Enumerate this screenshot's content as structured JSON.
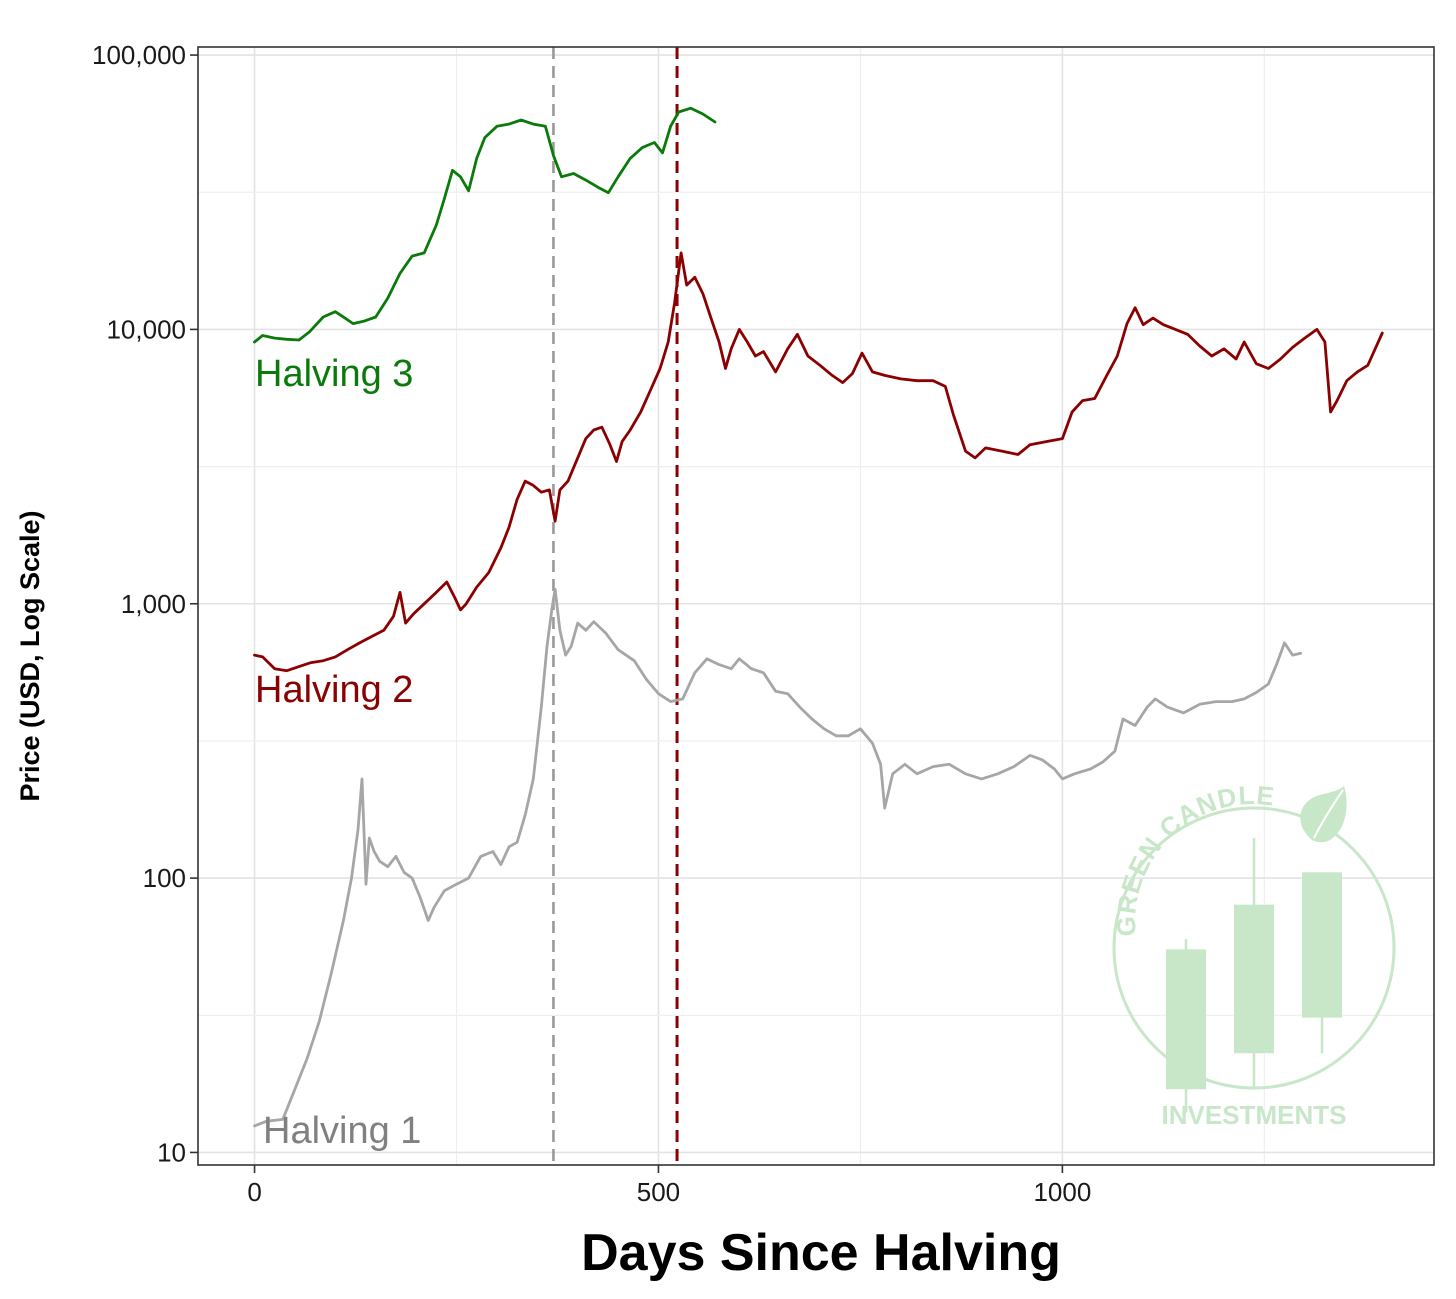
{
  "chart_data": {
    "type": "line",
    "title": "",
    "xlabel": "Days Since Halving",
    "ylabel": "Price (USD, Log Scale)",
    "y_scale": "log",
    "xlim": [
      -70,
      1460
    ],
    "ylim": [
      9,
      107000
    ],
    "x_ticks": [
      0,
      500,
      1000
    ],
    "x_tick_labels": [
      "0",
      "500",
      "1000"
    ],
    "y_ticks": [
      10,
      100,
      1000,
      10000,
      100000
    ],
    "y_tick_labels": [
      "10",
      "100",
      "1,000",
      "10,000",
      "100,000"
    ],
    "grid": true,
    "legend": "none",
    "colors": {
      "halving1": "#a6a6a6",
      "halving2": "#8b0000",
      "halving3": "#0a7a0a",
      "vline1": "#999999",
      "vline2": "#8b0000",
      "watermark": "#c8e6c8"
    },
    "vlines": [
      {
        "x": 370,
        "color": "#999999",
        "style": "dashed"
      },
      {
        "x": 523,
        "color": "#8b0000",
        "style": "dashed"
      }
    ],
    "series": [
      {
        "name": "Halving 1",
        "color": "#a6a6a6",
        "points": [
          [
            0,
            12.5
          ],
          [
            15,
            13
          ],
          [
            35,
            13.2
          ],
          [
            50,
            17
          ],
          [
            65,
            22
          ],
          [
            80,
            30
          ],
          [
            95,
            45
          ],
          [
            110,
            70
          ],
          [
            120,
            100
          ],
          [
            128,
            150
          ],
          [
            133,
            230
          ],
          [
            138,
            95
          ],
          [
            142,
            140
          ],
          [
            148,
            125
          ],
          [
            155,
            115
          ],
          [
            165,
            110
          ],
          [
            175,
            120
          ],
          [
            185,
            105
          ],
          [
            195,
            100
          ],
          [
            205,
            85
          ],
          [
            215,
            70
          ],
          [
            222,
            78
          ],
          [
            235,
            90
          ],
          [
            250,
            95
          ],
          [
            265,
            100
          ],
          [
            280,
            120
          ],
          [
            295,
            125
          ],
          [
            305,
            112
          ],
          [
            315,
            130
          ],
          [
            325,
            135
          ],
          [
            335,
            170
          ],
          [
            345,
            230
          ],
          [
            355,
            420
          ],
          [
            362,
            700
          ],
          [
            368,
            950
          ],
          [
            372,
            1130
          ],
          [
            378,
            800
          ],
          [
            385,
            650
          ],
          [
            392,
            700
          ],
          [
            400,
            850
          ],
          [
            410,
            800
          ],
          [
            420,
            860
          ],
          [
            435,
            780
          ],
          [
            450,
            680
          ],
          [
            470,
            620
          ],
          [
            485,
            530
          ],
          [
            500,
            470
          ],
          [
            515,
            440
          ],
          [
            530,
            450
          ],
          [
            545,
            560
          ],
          [
            560,
            630
          ],
          [
            575,
            600
          ],
          [
            590,
            580
          ],
          [
            600,
            630
          ],
          [
            615,
            580
          ],
          [
            630,
            560
          ],
          [
            645,
            480
          ],
          [
            660,
            470
          ],
          [
            675,
            420
          ],
          [
            690,
            380
          ],
          [
            705,
            350
          ],
          [
            720,
            330
          ],
          [
            735,
            330
          ],
          [
            750,
            350
          ],
          [
            765,
            310
          ],
          [
            775,
            260
          ],
          [
            780,
            180
          ],
          [
            790,
            240
          ],
          [
            805,
            260
          ],
          [
            820,
            240
          ],
          [
            840,
            255
          ],
          [
            860,
            260
          ],
          [
            880,
            240
          ],
          [
            900,
            230
          ],
          [
            920,
            240
          ],
          [
            940,
            255
          ],
          [
            960,
            280
          ],
          [
            975,
            270
          ],
          [
            990,
            250
          ],
          [
            1000,
            230
          ],
          [
            1015,
            240
          ],
          [
            1035,
            250
          ],
          [
            1050,
            265
          ],
          [
            1065,
            290
          ],
          [
            1075,
            380
          ],
          [
            1090,
            360
          ],
          [
            1105,
            420
          ],
          [
            1115,
            450
          ],
          [
            1130,
            420
          ],
          [
            1150,
            400
          ],
          [
            1170,
            430
          ],
          [
            1190,
            440
          ],
          [
            1210,
            440
          ],
          [
            1225,
            450
          ],
          [
            1240,
            475
          ],
          [
            1255,
            510
          ],
          [
            1265,
            600
          ],
          [
            1275,
            720
          ],
          [
            1285,
            650
          ],
          [
            1295,
            660
          ]
        ]
      },
      {
        "name": "Halving 2",
        "color": "#8b0000",
        "points": [
          [
            0,
            650
          ],
          [
            10,
            640
          ],
          [
            25,
            580
          ],
          [
            40,
            570
          ],
          [
            55,
            590
          ],
          [
            70,
            610
          ],
          [
            85,
            620
          ],
          [
            100,
            640
          ],
          [
            115,
            680
          ],
          [
            130,
            720
          ],
          [
            145,
            760
          ],
          [
            160,
            800
          ],
          [
            172,
            900
          ],
          [
            180,
            1100
          ],
          [
            187,
            850
          ],
          [
            197,
            920
          ],
          [
            210,
            1000
          ],
          [
            225,
            1100
          ],
          [
            238,
            1200
          ],
          [
            248,
            1050
          ],
          [
            255,
            950
          ],
          [
            262,
            1000
          ],
          [
            275,
            1150
          ],
          [
            290,
            1300
          ],
          [
            305,
            1600
          ],
          [
            315,
            1900
          ],
          [
            325,
            2400
          ],
          [
            335,
            2800
          ],
          [
            345,
            2700
          ],
          [
            355,
            2550
          ],
          [
            365,
            2600
          ],
          [
            372,
            2000
          ],
          [
            378,
            2600
          ],
          [
            388,
            2800
          ],
          [
            400,
            3400
          ],
          [
            410,
            4000
          ],
          [
            420,
            4300
          ],
          [
            430,
            4400
          ],
          [
            440,
            3800
          ],
          [
            448,
            3300
          ],
          [
            455,
            3900
          ],
          [
            465,
            4300
          ],
          [
            478,
            5000
          ],
          [
            490,
            6000
          ],
          [
            502,
            7200
          ],
          [
            512,
            9000
          ],
          [
            520,
            12500
          ],
          [
            528,
            19000
          ],
          [
            535,
            14500
          ],
          [
            545,
            15500
          ],
          [
            555,
            13500
          ],
          [
            565,
            11000
          ],
          [
            575,
            9000
          ],
          [
            583,
            7200
          ],
          [
            590,
            8500
          ],
          [
            600,
            10000
          ],
          [
            610,
            9000
          ],
          [
            620,
            8000
          ],
          [
            630,
            8300
          ],
          [
            645,
            7000
          ],
          [
            660,
            8500
          ],
          [
            672,
            9600
          ],
          [
            685,
            8000
          ],
          [
            700,
            7400
          ],
          [
            715,
            6800
          ],
          [
            728,
            6400
          ],
          [
            740,
            6900
          ],
          [
            752,
            8200
          ],
          [
            765,
            7000
          ],
          [
            780,
            6800
          ],
          [
            800,
            6600
          ],
          [
            820,
            6500
          ],
          [
            840,
            6500
          ],
          [
            855,
            6200
          ],
          [
            865,
            4900
          ],
          [
            880,
            3600
          ],
          [
            892,
            3400
          ],
          [
            905,
            3700
          ],
          [
            925,
            3600
          ],
          [
            945,
            3500
          ],
          [
            960,
            3800
          ],
          [
            980,
            3900
          ],
          [
            1000,
            4000
          ],
          [
            1012,
            5000
          ],
          [
            1025,
            5500
          ],
          [
            1040,
            5600
          ],
          [
            1055,
            6800
          ],
          [
            1068,
            8000
          ],
          [
            1080,
            10500
          ],
          [
            1090,
            12000
          ],
          [
            1100,
            10400
          ],
          [
            1112,
            11000
          ],
          [
            1125,
            10400
          ],
          [
            1140,
            10000
          ],
          [
            1155,
            9600
          ],
          [
            1170,
            8700
          ],
          [
            1185,
            8000
          ],
          [
            1200,
            8500
          ],
          [
            1215,
            7800
          ],
          [
            1225,
            9000
          ],
          [
            1240,
            7500
          ],
          [
            1255,
            7200
          ],
          [
            1270,
            7800
          ],
          [
            1285,
            8600
          ],
          [
            1300,
            9300
          ],
          [
            1315,
            10000
          ],
          [
            1325,
            9000
          ],
          [
            1332,
            5000
          ],
          [
            1340,
            5500
          ],
          [
            1352,
            6500
          ],
          [
            1365,
            7000
          ],
          [
            1378,
            7400
          ],
          [
            1388,
            8600
          ],
          [
            1396,
            9700
          ]
        ]
      },
      {
        "name": "Halving 3",
        "color": "#0a7a0a",
        "points": [
          [
            0,
            9000
          ],
          [
            10,
            9500
          ],
          [
            25,
            9300
          ],
          [
            40,
            9200
          ],
          [
            55,
            9150
          ],
          [
            68,
            9800
          ],
          [
            85,
            11100
          ],
          [
            100,
            11600
          ],
          [
            112,
            11000
          ],
          [
            122,
            10500
          ],
          [
            135,
            10700
          ],
          [
            150,
            11100
          ],
          [
            165,
            13000
          ],
          [
            180,
            16000
          ],
          [
            195,
            18500
          ],
          [
            210,
            19000
          ],
          [
            225,
            24000
          ],
          [
            235,
            30000
          ],
          [
            245,
            38000
          ],
          [
            255,
            36000
          ],
          [
            265,
            32000
          ],
          [
            275,
            42000
          ],
          [
            285,
            50000
          ],
          [
            300,
            55000
          ],
          [
            315,
            56000
          ],
          [
            330,
            58000
          ],
          [
            345,
            56000
          ],
          [
            360,
            55000
          ],
          [
            370,
            43000
          ],
          [
            380,
            36000
          ],
          [
            395,
            37000
          ],
          [
            410,
            35000
          ],
          [
            425,
            33000
          ],
          [
            438,
            31500
          ],
          [
            450,
            36000
          ],
          [
            465,
            42000
          ],
          [
            480,
            46000
          ],
          [
            495,
            48000
          ],
          [
            505,
            44000
          ],
          [
            515,
            55000
          ],
          [
            525,
            62000
          ],
          [
            540,
            64000
          ],
          [
            555,
            61000
          ],
          [
            570,
            57000
          ]
        ]
      }
    ]
  },
  "labels": {
    "halving1": "Halving 1",
    "halving2": "Halving 2",
    "halving3": "Halving 3"
  },
  "watermark": {
    "top_text": "GREEN CANDLE",
    "bottom_text": "INVESTMENTS",
    "color": "#c8e6c8",
    "icon": "candlestick-leaf-logo",
    "candles": [
      {
        "wick": [
          60,
          14
        ],
        "body": [
          55,
          17
        ]
      },
      {
        "wick": [
          140,
          17
        ],
        "body": [
          80,
          23
        ]
      },
      {
        "wick": [
          105,
          23
        ],
        "body": [
          105,
          31
        ]
      }
    ]
  }
}
